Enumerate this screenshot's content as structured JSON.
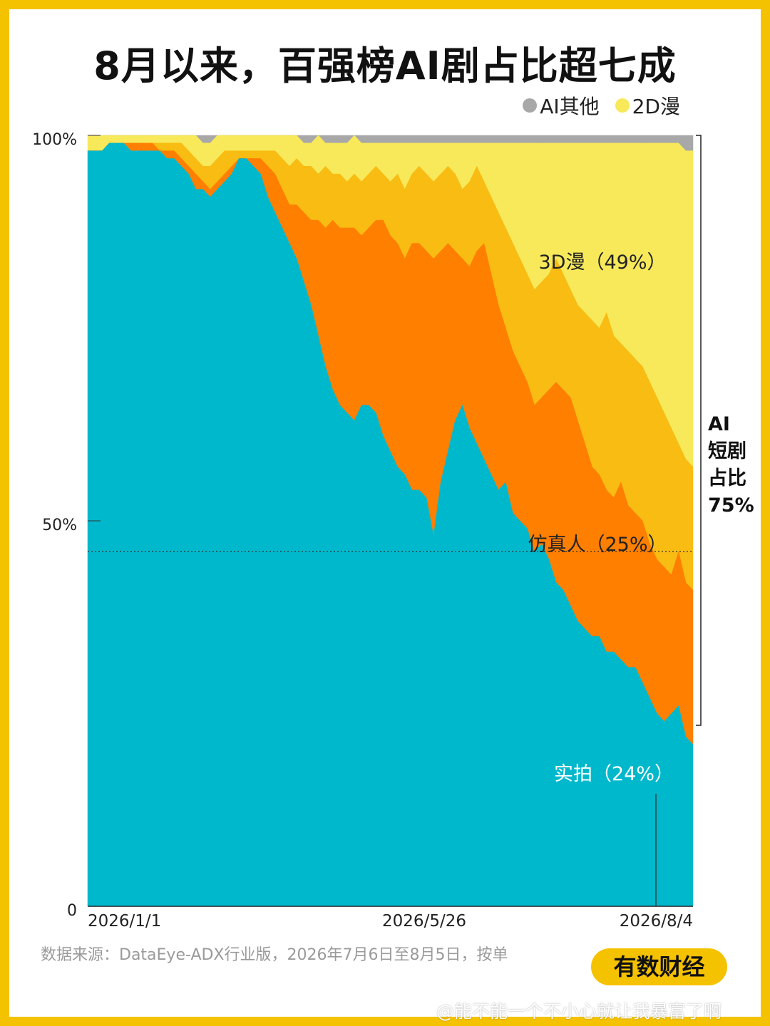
{
  "title": "8月以来，百强榜AI剧占比超七成",
  "legend": [
    {
      "label": "AI其他",
      "color": "#A8A8A8"
    },
    {
      "label": "2D漫",
      "color": "#F7E95A"
    }
  ],
  "colors": {
    "live": "#00B8CC",
    "sim": "#FF7F00",
    "d3": "#F8BC12",
    "d2": "#F7E95A",
    "other": "#A8A8A8",
    "frame": "#F5C200"
  },
  "chart_data": {
    "type": "area",
    "stacked": true,
    "normalized": true,
    "x_ticks": [
      "2026/1/1",
      "2026/5/26",
      "2026/8/4"
    ],
    "y_ticks": [
      "100%",
      "50%",
      "0"
    ],
    "ylim": [
      0,
      100
    ],
    "series_order": [
      "实拍",
      "仿真人",
      "3D漫",
      "2D漫",
      "AI其他"
    ],
    "x": [
      0,
      1,
      2,
      3,
      4,
      5,
      6,
      7,
      8,
      9,
      10,
      11,
      12,
      13,
      14,
      15,
      16,
      17,
      18,
      19,
      20,
      21,
      22,
      23,
      24,
      25,
      26,
      27,
      28,
      29,
      30,
      31,
      32,
      33,
      34,
      35,
      36,
      37,
      38,
      39,
      40,
      41,
      42,
      43,
      44,
      45,
      46,
      47,
      48,
      49,
      50,
      51,
      52,
      53,
      54,
      55,
      56,
      57,
      58,
      59,
      60,
      61,
      62,
      63,
      64,
      65,
      66,
      67,
      68,
      69,
      70,
      71,
      72,
      73,
      74,
      75,
      76,
      77,
      78,
      79,
      80,
      81,
      82,
      83,
      84
    ],
    "cumulative": {
      "live": [
        98,
        98,
        98,
        99,
        99,
        99,
        98,
        98,
        98,
        98,
        98,
        97,
        97,
        96,
        95,
        93,
        93,
        92,
        93,
        94,
        95,
        97,
        97,
        96,
        95,
        92,
        90,
        88,
        86,
        84,
        81,
        78,
        74,
        70,
        67,
        65,
        64,
        63,
        65,
        65,
        64,
        61,
        59,
        57,
        56,
        54,
        54,
        53,
        48,
        55,
        59,
        63,
        65,
        62,
        60,
        58,
        56,
        54,
        55,
        51,
        50,
        49,
        46,
        47,
        45,
        42,
        41,
        39,
        37,
        36,
        35,
        35,
        33,
        33,
        32,
        31,
        31,
        29,
        27,
        25,
        24,
        25,
        26,
        22,
        21
      ],
      "sim": [
        98,
        98,
        98,
        99,
        99,
        99,
        99,
        99,
        99,
        99,
        98,
        98,
        98,
        97,
        96,
        95,
        94,
        93,
        94,
        95,
        96,
        97,
        97,
        97,
        97,
        96,
        95,
        93,
        91,
        91,
        90,
        89,
        89,
        88,
        89,
        88,
        88,
        88,
        87,
        88,
        89,
        89,
        87,
        86,
        84,
        86,
        86,
        85,
        84,
        85,
        86,
        85,
        84,
        83,
        85,
        86,
        82,
        78,
        75,
        72,
        70,
        68,
        65,
        66,
        67,
        68,
        67,
        66,
        63,
        60,
        57,
        56,
        54,
        53,
        55,
        52,
        51,
        50,
        47,
        45,
        44,
        43,
        46,
        42,
        41
      ],
      "d3": [
        98,
        98,
        98,
        99,
        99,
        99,
        99,
        99,
        99,
        99,
        99,
        99,
        99,
        99,
        98,
        97,
        96,
        96,
        97,
        98,
        98,
        98,
        98,
        98,
        98,
        98,
        98,
        97,
        96,
        97,
        96,
        96,
        95,
        96,
        95,
        95,
        94,
        95,
        94,
        95,
        96,
        95,
        94,
        95,
        93,
        95,
        96,
        95,
        94,
        95,
        96,
        95,
        93,
        94,
        96,
        94,
        92,
        90,
        88,
        86,
        84,
        82,
        80,
        81,
        82,
        84,
        82,
        80,
        78,
        77,
        76,
        75,
        77,
        74,
        73,
        72,
        71,
        70,
        68,
        66,
        64,
        62,
        60,
        58,
        57
      ],
      "d2": [
        100,
        100,
        100,
        100,
        100,
        100,
        100,
        100,
        100,
        100,
        100,
        100,
        100,
        100,
        100,
        100,
        99,
        99,
        100,
        100,
        100,
        100,
        100,
        100,
        100,
        100,
        100,
        100,
        100,
        100,
        99,
        99,
        100,
        99,
        99,
        99,
        99,
        100,
        99,
        99,
        99,
        99,
        99,
        99,
        99,
        99,
        99,
        99,
        99,
        99,
        99,
        99,
        99,
        99,
        99,
        99,
        99,
        99,
        99,
        99,
        99,
        99,
        99,
        99,
        99,
        99,
        99,
        99,
        99,
        99,
        99,
        99,
        99,
        99,
        99,
        99,
        99,
        99,
        99,
        99,
        99,
        99,
        99,
        98,
        98
      ],
      "other": [
        100,
        100,
        100,
        100,
        100,
        100,
        100,
        100,
        100,
        100,
        100,
        100,
        100,
        100,
        100,
        100,
        100,
        100,
        100,
        100,
        100,
        100,
        100,
        100,
        100,
        100,
        100,
        100,
        100,
        100,
        100,
        100,
        100,
        100,
        100,
        100,
        100,
        100,
        100,
        100,
        100,
        100,
        100,
        100,
        100,
        100,
        100,
        100,
        100,
        100,
        100,
        100,
        100,
        100,
        100,
        100,
        100,
        100,
        100,
        100,
        100,
        100,
        100,
        100,
        100,
        100,
        100,
        100,
        100,
        100,
        100,
        100,
        100,
        100,
        100,
        100,
        100,
        100,
        100,
        100,
        100,
        100,
        100,
        100,
        100
      ]
    },
    "annotations": {
      "d3": "3D漫（49%）",
      "sim": "仿真人（25%）",
      "live": "实拍（24%）",
      "ai_total_lines": [
        "AI",
        "短剧",
        "占比",
        "75%"
      ]
    },
    "reference_line": 46
  },
  "source": "数据来源：DataEye-ADX行业版，2026年7月6日至8月5日，按单",
  "brand": "有数财经",
  "watermark": "@能不能一个不小心就让我暴富了啊"
}
